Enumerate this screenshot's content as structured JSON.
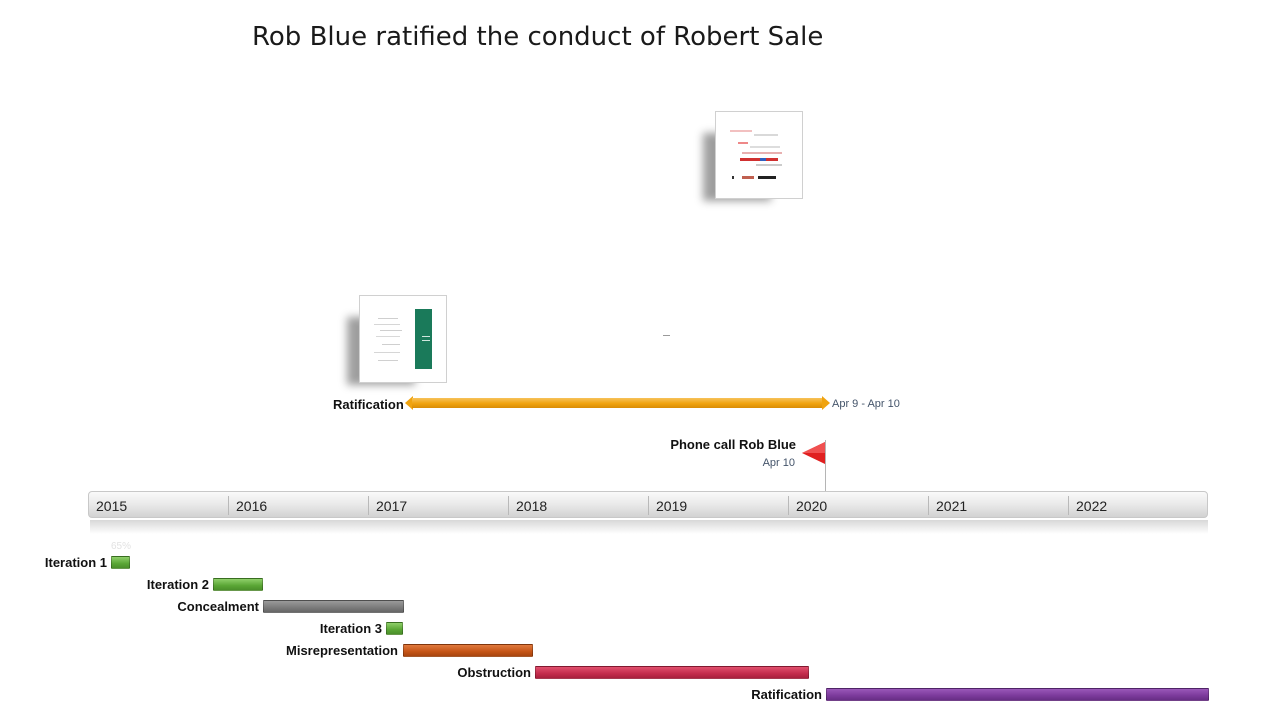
{
  "title": "Rob Blue ratified the conduct of Robert Sale",
  "thumbnails": [
    {
      "name": "document-thumbnail-top"
    },
    {
      "name": "document-thumbnail-left"
    }
  ],
  "span": {
    "label": "Ratification",
    "dates": "Apr 9 - Apr 10",
    "color": "#f0a30e"
  },
  "milestone": {
    "label": "Phone call Rob Blue",
    "date": "Apr 10",
    "color": "#e02020"
  },
  "timescale": {
    "years": [
      "2015",
      "2016",
      "2017",
      "2018",
      "2019",
      "2020",
      "2021",
      "2022"
    ]
  },
  "tasks": [
    {
      "label": "Iteration 1",
      "color": "#5aa635",
      "percent": "65%"
    },
    {
      "label": "Iteration 2",
      "color": "#5aa635"
    },
    {
      "label": "Concealment",
      "color": "#7b7b7b"
    },
    {
      "label": "Iteration 3",
      "color": "#5aa635"
    },
    {
      "label": "Misrepresentation",
      "color": "#c55416"
    },
    {
      "label": "Obstruction",
      "color": "#c42c4c"
    },
    {
      "label": "Ratification",
      "color": "#7c3a9c"
    }
  ]
}
